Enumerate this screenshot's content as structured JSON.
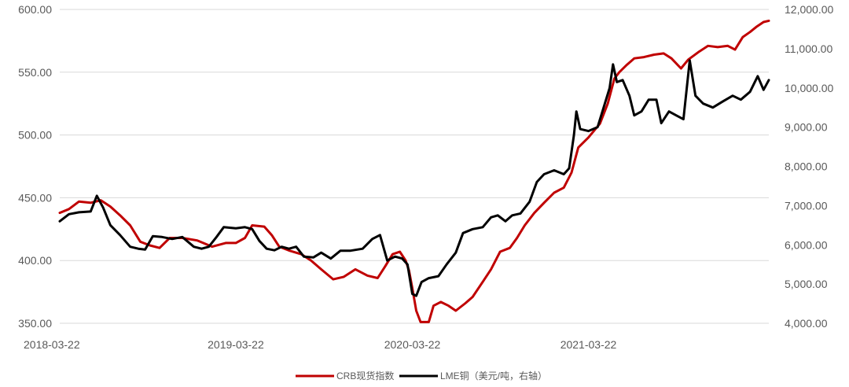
{
  "chart_data": {
    "type": "line",
    "title": "",
    "xlabel": "",
    "ylabel": "",
    "left_axis": {
      "ylim": [
        350,
        600
      ],
      "ticks": [
        350,
        400,
        450,
        500,
        550,
        600
      ],
      "tick_labels": [
        "350.00",
        "400.00",
        "450.00",
        "500.00",
        "550.00",
        "600.00"
      ]
    },
    "right_axis": {
      "ylim": [
        4000,
        12000
      ],
      "ticks": [
        4000,
        5000,
        6000,
        7000,
        8000,
        9000,
        10000,
        11000,
        12000
      ],
      "tick_labels": [
        "4,000.00",
        "5,000.00",
        "6,000.00",
        "7,000.00",
        "8,000.00",
        "9,000.00",
        "10,000.00",
        "11,000.00",
        "12,000.00"
      ]
    },
    "x_axis": {
      "range": [
        "2018-03-22",
        "2022-03-31"
      ],
      "ticks": [
        "2018-03-22",
        "2019-03-22",
        "2020-03-22",
        "2021-03-22"
      ]
    },
    "grid": "horizontal",
    "legend_position": "bottom",
    "series": [
      {
        "name": "CRB现货指数",
        "axis": "left",
        "color": "#c00000",
        "points": [
          [
            "2018-03-22",
            438
          ],
          [
            "2018-04-10",
            441
          ],
          [
            "2018-05-01",
            447
          ],
          [
            "2018-05-25",
            446
          ],
          [
            "2018-06-15",
            448
          ],
          [
            "2018-07-05",
            443
          ],
          [
            "2018-07-25",
            436
          ],
          [
            "2018-08-15",
            428
          ],
          [
            "2018-09-05",
            415
          ],
          [
            "2018-09-25",
            412
          ],
          [
            "2018-10-15",
            410
          ],
          [
            "2018-11-05",
            418
          ],
          [
            "2018-12-01",
            418
          ],
          [
            "2019-01-01",
            416
          ],
          [
            "2019-02-01",
            411
          ],
          [
            "2019-03-01",
            414
          ],
          [
            "2019-03-22",
            414
          ],
          [
            "2019-04-10",
            418
          ],
          [
            "2019-04-25",
            428
          ],
          [
            "2019-05-20",
            427
          ],
          [
            "2019-06-05",
            420
          ],
          [
            "2019-06-20",
            411
          ],
          [
            "2019-07-10",
            408
          ],
          [
            "2019-08-05",
            405
          ],
          [
            "2019-08-25",
            400
          ],
          [
            "2019-09-15",
            393
          ],
          [
            "2019-10-10",
            385
          ],
          [
            "2019-11-01",
            387
          ],
          [
            "2019-11-25",
            393
          ],
          [
            "2019-12-20",
            388
          ],
          [
            "2020-01-10",
            386
          ],
          [
            "2020-01-25",
            395
          ],
          [
            "2020-02-10",
            405
          ],
          [
            "2020-02-25",
            407
          ],
          [
            "2020-03-08",
            400
          ],
          [
            "2020-03-15",
            392
          ],
          [
            "2020-03-22",
            378
          ],
          [
            "2020-03-30",
            360
          ],
          [
            "2020-04-08",
            351
          ],
          [
            "2020-04-25",
            351
          ],
          [
            "2020-05-05",
            364
          ],
          [
            "2020-05-20",
            367
          ],
          [
            "2020-06-05",
            364
          ],
          [
            "2020-06-20",
            360
          ],
          [
            "2020-07-10",
            366
          ],
          [
            "2020-07-25",
            371
          ],
          [
            "2020-08-15",
            383
          ],
          [
            "2020-09-01",
            393
          ],
          [
            "2020-09-20",
            407
          ],
          [
            "2020-10-10",
            410
          ],
          [
            "2020-10-25",
            418
          ],
          [
            "2020-11-10",
            428
          ],
          [
            "2020-11-30",
            438
          ],
          [
            "2020-12-20",
            446
          ],
          [
            "2021-01-10",
            454
          ],
          [
            "2021-01-30",
            458
          ],
          [
            "2021-02-15",
            470
          ],
          [
            "2021-03-01",
            490
          ],
          [
            "2021-03-22",
            498
          ],
          [
            "2021-04-15",
            509
          ],
          [
            "2021-05-01",
            525
          ],
          [
            "2021-05-15",
            545
          ],
          [
            "2021-05-25",
            550
          ],
          [
            "2021-06-10",
            556
          ],
          [
            "2021-06-25",
            561
          ],
          [
            "2021-07-15",
            562
          ],
          [
            "2021-08-05",
            564
          ],
          [
            "2021-08-25",
            565
          ],
          [
            "2021-09-10",
            561
          ],
          [
            "2021-09-30",
            553
          ],
          [
            "2021-10-15",
            560
          ],
          [
            "2021-11-05",
            566
          ],
          [
            "2021-11-25",
            571
          ],
          [
            "2021-12-15",
            570
          ],
          [
            "2022-01-05",
            571
          ],
          [
            "2022-01-20",
            568
          ],
          [
            "2022-02-05",
            578
          ],
          [
            "2022-02-20",
            582
          ],
          [
            "2022-03-05",
            586
          ],
          [
            "2022-03-20",
            590
          ],
          [
            "2022-03-31",
            591
          ]
        ]
      },
      {
        "name": "LME铜（美元/吨，右轴）",
        "axis": "right",
        "color": "#000000",
        "points": [
          [
            "2018-03-22",
            6600
          ],
          [
            "2018-04-10",
            6780
          ],
          [
            "2018-05-01",
            6830
          ],
          [
            "2018-05-25",
            6850
          ],
          [
            "2018-06-07",
            7250
          ],
          [
            "2018-06-20",
            6950
          ],
          [
            "2018-07-05",
            6500
          ],
          [
            "2018-07-25",
            6250
          ],
          [
            "2018-08-15",
            5950
          ],
          [
            "2018-09-01",
            5900
          ],
          [
            "2018-09-15",
            5880
          ],
          [
            "2018-10-01",
            6220
          ],
          [
            "2018-10-20",
            6200
          ],
          [
            "2018-11-10",
            6150
          ],
          [
            "2018-12-01",
            6200
          ],
          [
            "2018-12-25",
            5950
          ],
          [
            "2019-01-10",
            5900
          ],
          [
            "2019-01-25",
            5950
          ],
          [
            "2019-02-10",
            6200
          ],
          [
            "2019-02-25",
            6450
          ],
          [
            "2019-03-22",
            6420
          ],
          [
            "2019-04-10",
            6450
          ],
          [
            "2019-04-25",
            6400
          ],
          [
            "2019-05-10",
            6100
          ],
          [
            "2019-05-25",
            5900
          ],
          [
            "2019-06-10",
            5860
          ],
          [
            "2019-06-25",
            5950
          ],
          [
            "2019-07-10",
            5900
          ],
          [
            "2019-07-25",
            5950
          ],
          [
            "2019-08-10",
            5700
          ],
          [
            "2019-08-30",
            5680
          ],
          [
            "2019-09-15",
            5800
          ],
          [
            "2019-10-05",
            5650
          ],
          [
            "2019-10-25",
            5850
          ],
          [
            "2019-11-15",
            5850
          ],
          [
            "2019-12-10",
            5900
          ],
          [
            "2019-12-30",
            6150
          ],
          [
            "2020-01-15",
            6250
          ],
          [
            "2020-01-30",
            5600
          ],
          [
            "2020-02-15",
            5700
          ],
          [
            "2020-03-01",
            5650
          ],
          [
            "2020-03-12",
            5500
          ],
          [
            "2020-03-22",
            4750
          ],
          [
            "2020-03-30",
            4700
          ],
          [
            "2020-04-10",
            5050
          ],
          [
            "2020-04-25",
            5150
          ],
          [
            "2020-05-15",
            5200
          ],
          [
            "2020-06-01",
            5500
          ],
          [
            "2020-06-20",
            5800
          ],
          [
            "2020-07-05",
            6300
          ],
          [
            "2020-07-25",
            6400
          ],
          [
            "2020-08-15",
            6450
          ],
          [
            "2020-09-01",
            6700
          ],
          [
            "2020-09-15",
            6750
          ],
          [
            "2020-10-01",
            6600
          ],
          [
            "2020-10-15",
            6750
          ],
          [
            "2020-11-01",
            6800
          ],
          [
            "2020-11-20",
            7100
          ],
          [
            "2020-12-05",
            7600
          ],
          [
            "2020-12-20",
            7800
          ],
          [
            "2021-01-10",
            7900
          ],
          [
            "2021-01-30",
            7800
          ],
          [
            "2021-02-10",
            7950
          ],
          [
            "2021-02-20",
            8800
          ],
          [
            "2021-02-25",
            9400
          ],
          [
            "2021-03-05",
            8950
          ],
          [
            "2021-03-22",
            8900
          ],
          [
            "2021-04-10",
            9000
          ],
          [
            "2021-04-25",
            9600
          ],
          [
            "2021-05-05",
            10000
          ],
          [
            "2021-05-12",
            10600
          ],
          [
            "2021-05-20",
            10150
          ],
          [
            "2021-06-01",
            10200
          ],
          [
            "2021-06-15",
            9800
          ],
          [
            "2021-06-25",
            9300
          ],
          [
            "2021-07-10",
            9400
          ],
          [
            "2021-07-25",
            9700
          ],
          [
            "2021-08-10",
            9700
          ],
          [
            "2021-08-20",
            9100
          ],
          [
            "2021-09-05",
            9400
          ],
          [
            "2021-09-20",
            9300
          ],
          [
            "2021-10-05",
            9200
          ],
          [
            "2021-10-18",
            10700
          ],
          [
            "2021-10-30",
            9800
          ],
          [
            "2021-11-15",
            9600
          ],
          [
            "2021-12-05",
            9500
          ],
          [
            "2021-12-25",
            9650
          ],
          [
            "2022-01-15",
            9800
          ],
          [
            "2022-02-01",
            9700
          ],
          [
            "2022-02-20",
            9900
          ],
          [
            "2022-03-08",
            10300
          ],
          [
            "2022-03-20",
            9950
          ],
          [
            "2022-03-31",
            10200
          ]
        ]
      }
    ]
  },
  "colors": {
    "crb": "#c00000",
    "lme": "#000000",
    "grid": "#d9d9d9",
    "tick_text": "#595959"
  }
}
